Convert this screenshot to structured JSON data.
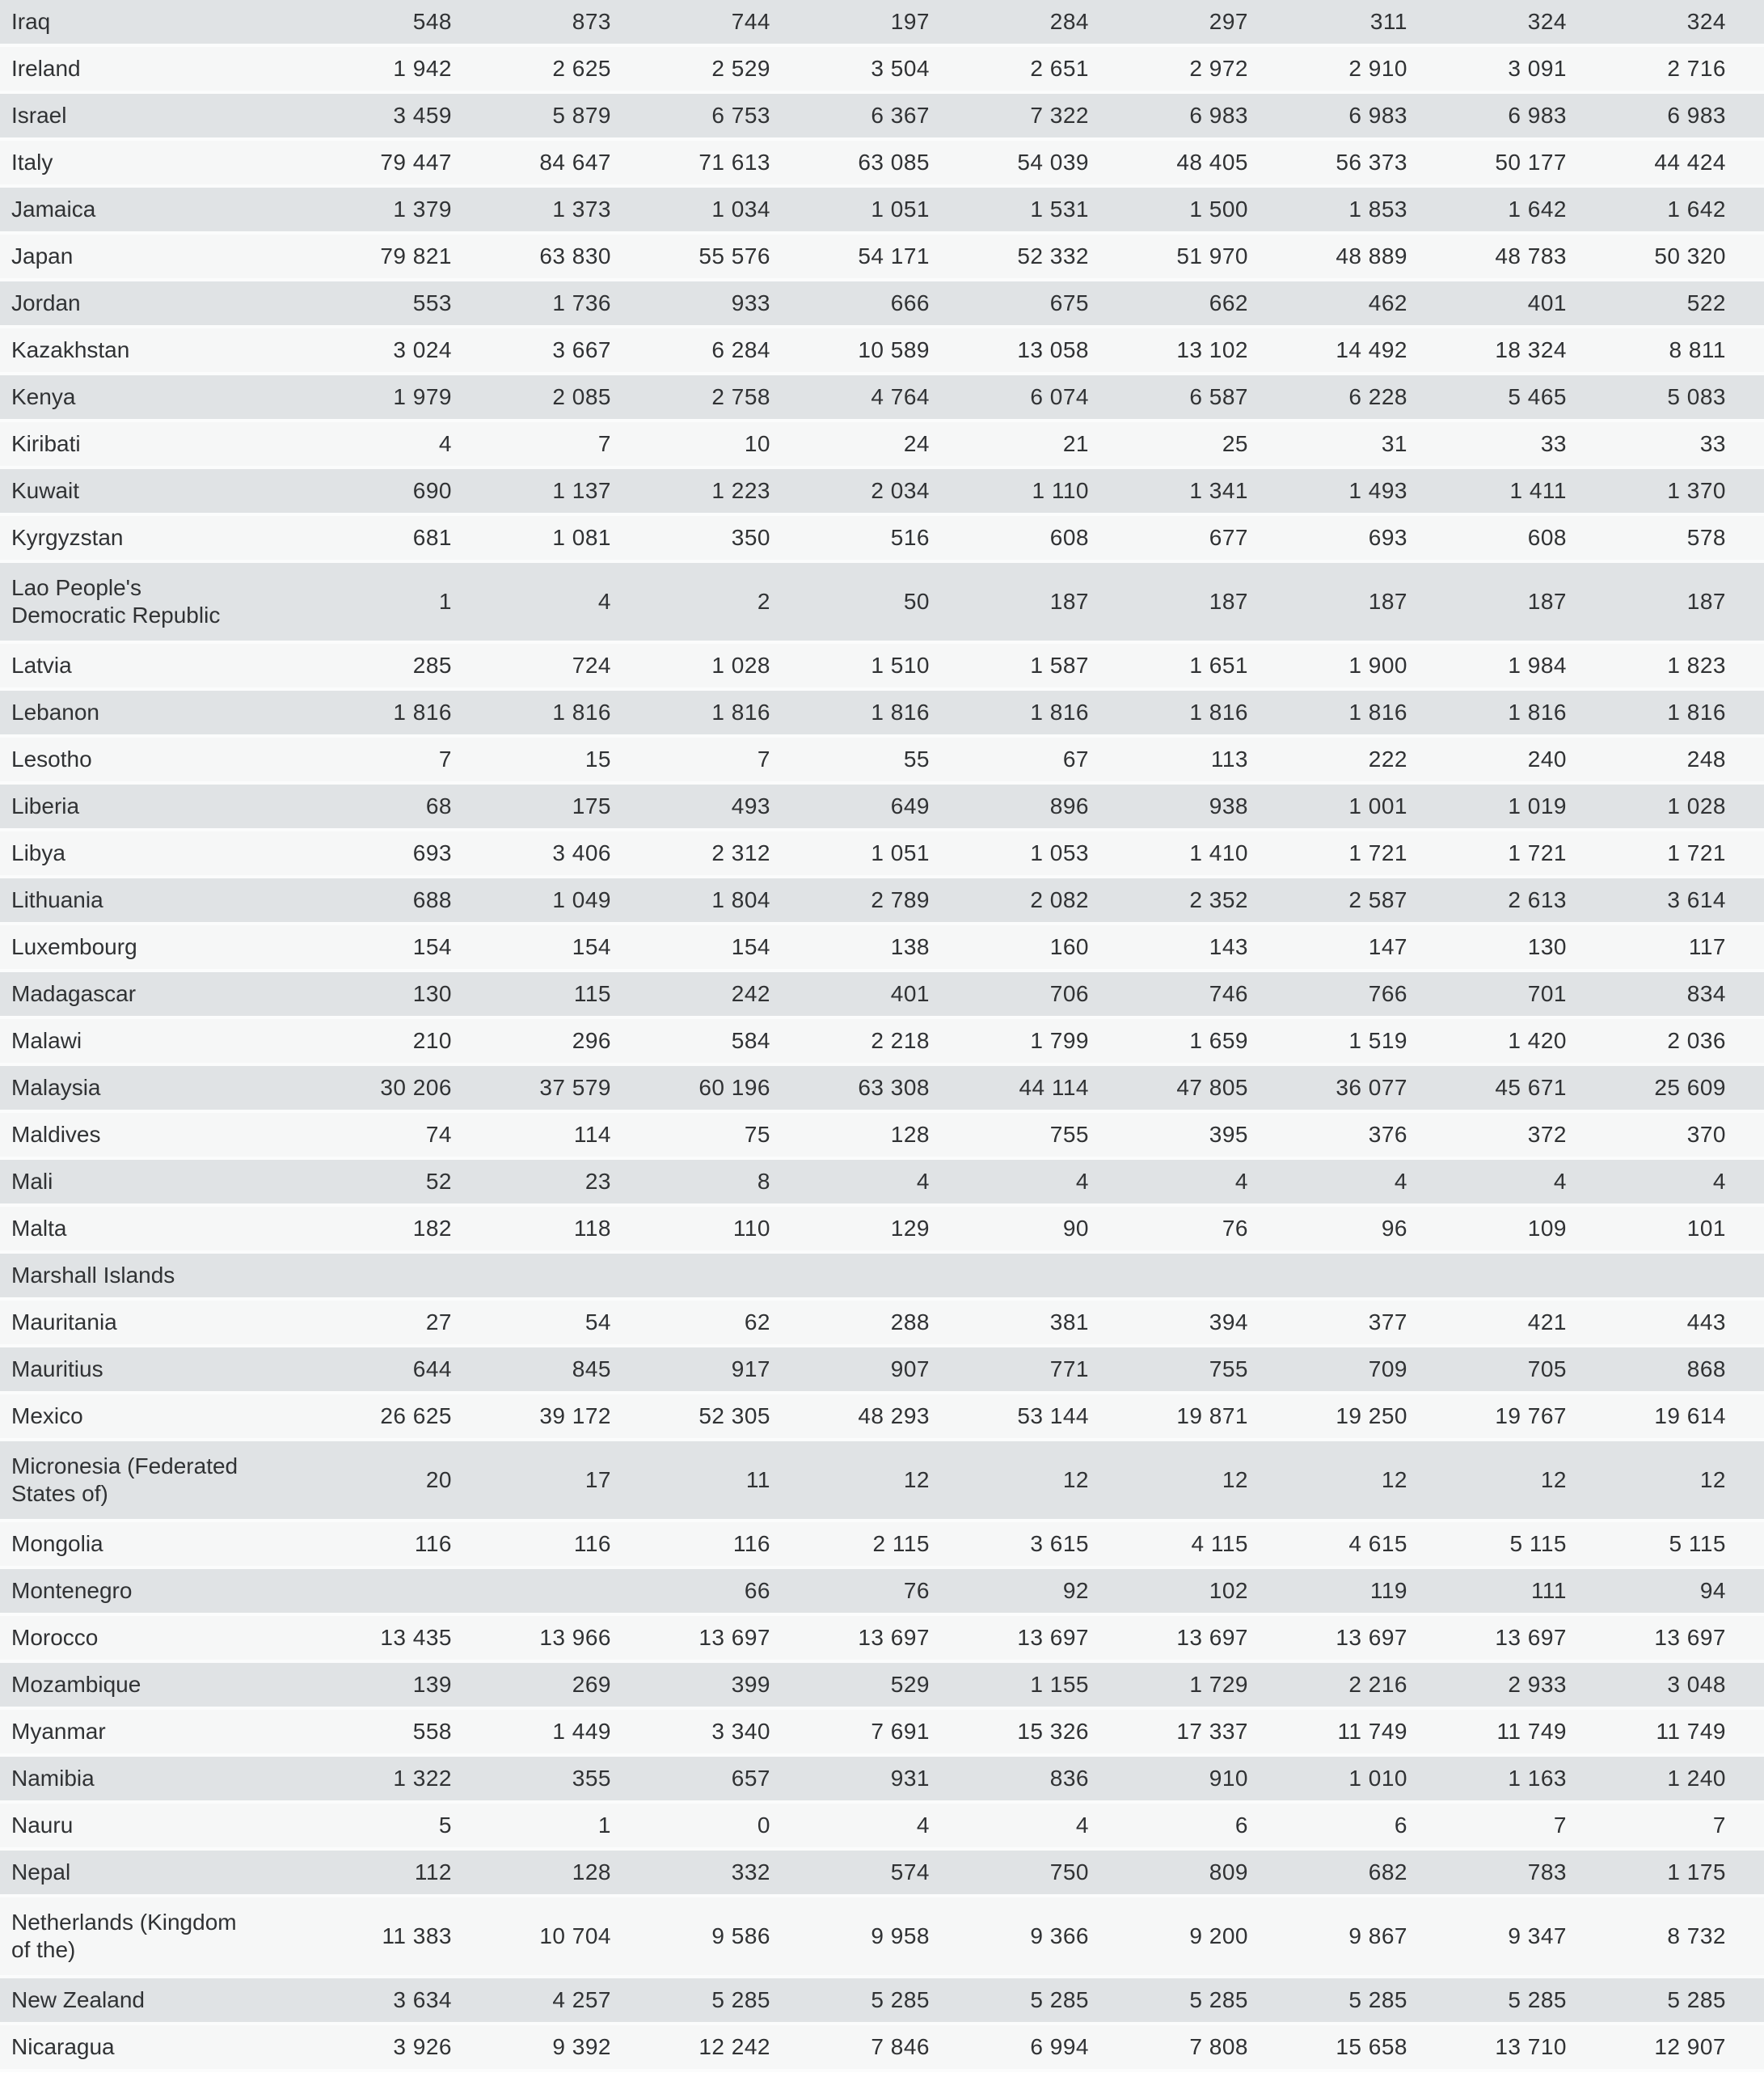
{
  "page": {
    "description": "Scrolled view of a statistical data table listing countries alphabetically (Iraq to Nicaragua) with nine columns of numeric values; no header row visible",
    "visible_value_columns": 9,
    "number_format": "space-separated thousands"
  },
  "style": {
    "row_stripe_dark": "#e0e3e5",
    "row_stripe_light": "#f6f7f7",
    "row_separator": "#fbfcfc",
    "text_color": "#303234"
  },
  "table": {
    "rows": [
      {
        "country": "Iraq",
        "values": [
          "548",
          "873",
          "744",
          "197",
          "284",
          "297",
          "311",
          "324",
          "324"
        ]
      },
      {
        "country": "Ireland",
        "values": [
          "1 942",
          "2 625",
          "2 529",
          "3 504",
          "2 651",
          "2 972",
          "2 910",
          "3 091",
          "2 716"
        ]
      },
      {
        "country": "Israel",
        "values": [
          "3 459",
          "5 879",
          "6 753",
          "6 367",
          "7 322",
          "6 983",
          "6 983",
          "6 983",
          "6 983"
        ]
      },
      {
        "country": "Italy",
        "values": [
          "79 447",
          "84 647",
          "71 613",
          "63 085",
          "54 039",
          "48 405",
          "56 373",
          "50 177",
          "44 424"
        ]
      },
      {
        "country": "Jamaica",
        "values": [
          "1 379",
          "1 373",
          "1 034",
          "1 051",
          "1 531",
          "1 500",
          "1 853",
          "1 642",
          "1 642"
        ]
      },
      {
        "country": "Japan",
        "values": [
          "79 821",
          "63 830",
          "55 576",
          "54 171",
          "52 332",
          "51 970",
          "48 889",
          "48 783",
          "50 320"
        ]
      },
      {
        "country": "Jordan",
        "values": [
          "553",
          "1 736",
          "933",
          "666",
          "675",
          "662",
          "462",
          "401",
          "522"
        ]
      },
      {
        "country": "Kazakhstan",
        "values": [
          "3 024",
          "3 667",
          "6 284",
          "10 589",
          "13 058",
          "13 102",
          "14 492",
          "18 324",
          "8 811"
        ]
      },
      {
        "country": "Kenya",
        "values": [
          "1 979",
          "2 085",
          "2 758",
          "4 764",
          "6 074",
          "6 587",
          "6 228",
          "5 465",
          "5 083"
        ]
      },
      {
        "country": "Kiribati",
        "values": [
          "4",
          "7",
          "10",
          "24",
          "21",
          "25",
          "31",
          "33",
          "33"
        ]
      },
      {
        "country": "Kuwait",
        "values": [
          "690",
          "1 137",
          "1 223",
          "2 034",
          "1 110",
          "1 341",
          "1 493",
          "1 411",
          "1 370"
        ]
      },
      {
        "country": "Kyrgyzstan",
        "values": [
          "681",
          "1 081",
          "350",
          "516",
          "608",
          "677",
          "693",
          "608",
          "578"
        ]
      },
      {
        "country": "Lao People's\nDemocratic Republic",
        "values": [
          "1",
          "4",
          "2",
          "50",
          "187",
          "187",
          "187",
          "187",
          "187"
        ]
      },
      {
        "country": "Latvia",
        "values": [
          "285",
          "724",
          "1 028",
          "1 510",
          "1 587",
          "1 651",
          "1 900",
          "1 984",
          "1 823"
        ]
      },
      {
        "country": "Lebanon",
        "values": [
          "1 816",
          "1 816",
          "1 816",
          "1 816",
          "1 816",
          "1 816",
          "1 816",
          "1 816",
          "1 816"
        ]
      },
      {
        "country": "Lesotho",
        "values": [
          "7",
          "15",
          "7",
          "55",
          "67",
          "113",
          "222",
          "240",
          "248"
        ]
      },
      {
        "country": "Liberia",
        "values": [
          "68",
          "175",
          "493",
          "649",
          "896",
          "938",
          "1 001",
          "1 019",
          "1 028"
        ]
      },
      {
        "country": "Libya",
        "values": [
          "693",
          "3 406",
          "2 312",
          "1 051",
          "1 053",
          "1 410",
          "1 721",
          "1 721",
          "1 721"
        ]
      },
      {
        "country": "Lithuania",
        "values": [
          "688",
          "1 049",
          "1 804",
          "2 789",
          "2 082",
          "2 352",
          "2 587",
          "2 613",
          "3 614"
        ]
      },
      {
        "country": "Luxembourg",
        "values": [
          "154",
          "154",
          "154",
          "138",
          "160",
          "143",
          "147",
          "130",
          "117"
        ]
      },
      {
        "country": "Madagascar",
        "values": [
          "130",
          "115",
          "242",
          "401",
          "706",
          "746",
          "766",
          "701",
          "834"
        ]
      },
      {
        "country": "Malawi",
        "values": [
          "210",
          "296",
          "584",
          "2 218",
          "1 799",
          "1 659",
          "1 519",
          "1 420",
          "2 036"
        ]
      },
      {
        "country": "Malaysia",
        "values": [
          "30 206",
          "37 579",
          "60 196",
          "63 308",
          "44 114",
          "47 805",
          "36 077",
          "45 671",
          "25 609"
        ]
      },
      {
        "country": "Maldives",
        "values": [
          "74",
          "114",
          "75",
          "128",
          "755",
          "395",
          "376",
          "372",
          "370"
        ]
      },
      {
        "country": "Mali",
        "values": [
          "52",
          "23",
          "8",
          "4",
          "4",
          "4",
          "4",
          "4",
          "4"
        ]
      },
      {
        "country": "Malta",
        "values": [
          "182",
          "118",
          "110",
          "129",
          "90",
          "76",
          "96",
          "109",
          "101"
        ]
      },
      {
        "country": "Marshall Islands",
        "values": [
          "",
          "",
          "",
          "",
          "",
          "",
          "",
          "",
          ""
        ]
      },
      {
        "country": "Mauritania",
        "values": [
          "27",
          "54",
          "62",
          "288",
          "381",
          "394",
          "377",
          "421",
          "443"
        ]
      },
      {
        "country": "Mauritius",
        "values": [
          "644",
          "845",
          "917",
          "907",
          "771",
          "755",
          "709",
          "705",
          "868"
        ]
      },
      {
        "country": "Mexico",
        "values": [
          "26 625",
          "39 172",
          "52 305",
          "48 293",
          "53 144",
          "19 871",
          "19 250",
          "19 767",
          "19 614"
        ]
      },
      {
        "country": "Micronesia (Federated\nStates of)",
        "values": [
          "20",
          "17",
          "11",
          "12",
          "12",
          "12",
          "12",
          "12",
          "12"
        ]
      },
      {
        "country": "Mongolia",
        "values": [
          "116",
          "116",
          "116",
          "2 115",
          "3 615",
          "4 115",
          "4 615",
          "5 115",
          "5 115"
        ]
      },
      {
        "country": "Montenegro",
        "values": [
          "",
          "",
          "66",
          "76",
          "92",
          "102",
          "119",
          "111",
          "94"
        ]
      },
      {
        "country": "Morocco",
        "values": [
          "13 435",
          "13 966",
          "13 697",
          "13 697",
          "13 697",
          "13 697",
          "13 697",
          "13 697",
          "13 697"
        ]
      },
      {
        "country": "Mozambique",
        "values": [
          "139",
          "269",
          "399",
          "529",
          "1 155",
          "1 729",
          "2 216",
          "2 933",
          "3 048"
        ]
      },
      {
        "country": "Myanmar",
        "values": [
          "558",
          "1 449",
          "3 340",
          "7 691",
          "15 326",
          "17 337",
          "11 749",
          "11 749",
          "11 749"
        ]
      },
      {
        "country": "Namibia",
        "values": [
          "1 322",
          "355",
          "657",
          "931",
          "836",
          "910",
          "1 010",
          "1 163",
          "1 240"
        ]
      },
      {
        "country": "Nauru",
        "values": [
          "5",
          "1",
          "0",
          "4",
          "4",
          "6",
          "6",
          "7",
          "7"
        ]
      },
      {
        "country": "Nepal",
        "values": [
          "112",
          "128",
          "332",
          "574",
          "750",
          "809",
          "682",
          "783",
          "1 175"
        ]
      },
      {
        "country": "Netherlands (Kingdom\nof the)",
        "values": [
          "11 383",
          "10 704",
          "9 586",
          "9 958",
          "9 366",
          "9 200",
          "9 867",
          "9 347",
          "8 732"
        ]
      },
      {
        "country": "New Zealand",
        "values": [
          "3 634",
          "4 257",
          "5 285",
          "5 285",
          "5 285",
          "5 285",
          "5 285",
          "5 285",
          "5 285"
        ]
      },
      {
        "country": "Nicaragua",
        "values": [
          "3 926",
          "9 392",
          "12 242",
          "7 846",
          "6 994",
          "7 808",
          "15 658",
          "13 710",
          "12 907"
        ]
      }
    ]
  }
}
